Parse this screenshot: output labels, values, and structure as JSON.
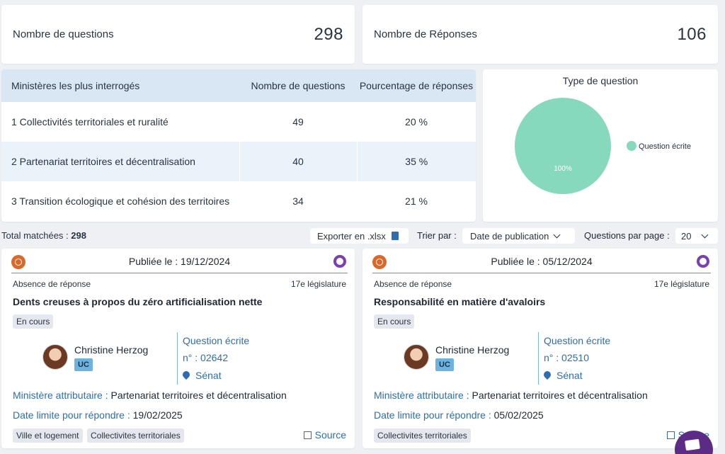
{
  "stats": {
    "questions_label": "Nombre de questions",
    "questions_value": "298",
    "answers_label": "Nombre de Réponses",
    "answers_value": "106"
  },
  "ministries_table": {
    "headers": [
      "Ministères les plus interrogés",
      "Nombre de questions",
      "Pourcentage de réponses"
    ],
    "rows": [
      [
        "1 Collectivités territoriales et ruralité",
        "49",
        "20 %"
      ],
      [
        "2 Partenariat territoires et décentralisation",
        "40",
        "35 %"
      ],
      [
        "3 Transition écologique et cohésion des territoires",
        "34",
        "21 %"
      ]
    ]
  },
  "chart_data": {
    "type": "pie",
    "title": "Type de question",
    "slices": [
      {
        "label": "Question écrite",
        "value": 100,
        "display": "100%",
        "color": "#86d9bd"
      }
    ],
    "legend_position": "right"
  },
  "toolbar": {
    "total_label": "Total matchées : ",
    "total_value": "298",
    "export_label": "Exporter en .xlsx",
    "sort_label": "Trier par :",
    "sort_value": "Date de publication",
    "per_page_label": "Questions par page :",
    "per_page_value": "20"
  },
  "cards": [
    {
      "published": "Publiée le : 19/12/2024",
      "status": "Absence de réponse",
      "legislature": "17e législature",
      "title": "Dents creuses à propos du zéro artificialisation nette",
      "state": "En cours",
      "author": "Christine Herzog",
      "party": "UC",
      "qtype": "Question écrite",
      "number": "n° : 02642",
      "chamber": "Sénat",
      "ministry_label": "Ministère attributaire : ",
      "ministry": "Partenariat territoires et décentralisation",
      "deadline_label": "Date limite pour répondre : ",
      "deadline": "19/02/2025",
      "tags": [
        "Ville et logement",
        "Collectivites territoriales"
      ],
      "source": "Source"
    },
    {
      "published": "Publiée le : 05/12/2024",
      "status": "Absence de réponse",
      "legislature": "17e législature",
      "title": "Responsabilité en matière d'avaloirs",
      "state": "En cours",
      "author": "Christine Herzog",
      "party": "UC",
      "qtype": "Question écrite",
      "number": "n° : 02510",
      "chamber": "Sénat",
      "ministry_label": "Ministère attributaire : ",
      "ministry": "Partenariat territoires et décentralisation",
      "deadline_label": "Date limite pour répondre : ",
      "deadline": "05/02/2025",
      "tags": [
        "Collectivites territoriales"
      ],
      "source": "Source"
    }
  ]
}
